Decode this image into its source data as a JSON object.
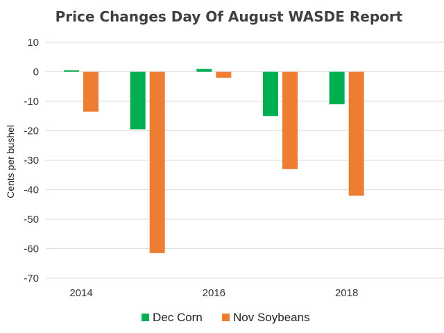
{
  "chart_data": {
    "type": "bar",
    "title": "Price Changes Day Of August WASDE Report",
    "xlabel": "",
    "ylabel": "Cents per bushel",
    "ylim": [
      -70,
      10
    ],
    "yticks": [
      10,
      0,
      -10,
      -20,
      -30,
      -40,
      -50,
      -60,
      -70
    ],
    "categories": [
      "2014",
      "2015",
      "2016",
      "2017",
      "2018"
    ],
    "x_tick_labels": [
      "2014",
      "2016",
      "2018"
    ],
    "grid": true,
    "legend_position": "bottom",
    "series": [
      {
        "name": "Dec Corn",
        "color": "#00b050",
        "values": [
          0.5,
          -19.5,
          1,
          -15,
          -11
        ]
      },
      {
        "name": "Nov Soybeans",
        "color": "#ed7d31",
        "values": [
          -13.5,
          -61.5,
          -2,
          -33,
          -42
        ]
      }
    ]
  }
}
